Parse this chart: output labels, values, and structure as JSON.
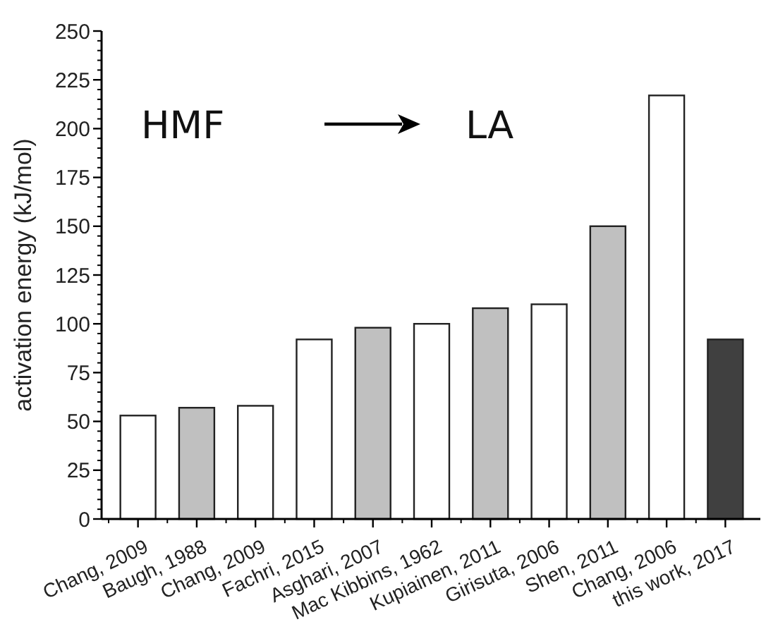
{
  "chart_data": {
    "type": "bar",
    "ylabel": "activation energy (kJ/mol)",
    "categories": [
      "Chang, 2009",
      "Baugh, 1988",
      "Chang, 2009",
      "Fachri, 2015",
      "Asghari, 2007",
      "Mac Kibbins, 1962",
      "Kupiainen, 2011",
      "Girisuta, 2006",
      "Shen, 2011",
      "Chang, 2006",
      "this work, 2017"
    ],
    "values": [
      53,
      57,
      58,
      92,
      98,
      100,
      108,
      110,
      150,
      217,
      92
    ],
    "colors": [
      "#ffffff",
      "#c0c0c0",
      "#ffffff",
      "#ffffff",
      "#c0c0c0",
      "#ffffff",
      "#c0c0c0",
      "#ffffff",
      "#c0c0c0",
      "#ffffff",
      "#404040"
    ],
    "ylim": [
      0,
      250
    ],
    "yticks": [
      0,
      25,
      50,
      75,
      100,
      125,
      150,
      175,
      200,
      225,
      250
    ],
    "annotations": [
      "HMF",
      "LA"
    ],
    "grid": false
  }
}
